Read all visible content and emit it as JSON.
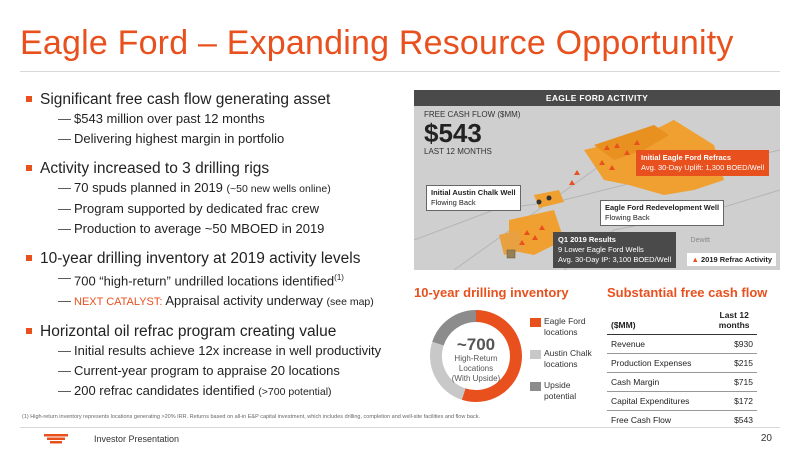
{
  "title": "Eagle Ford – Expanding Resource Opportunity",
  "bullets": [
    {
      "text": "Significant free cash flow generating asset",
      "subs": [
        "$543 million over past 12 months",
        "Delivering highest margin in portfolio"
      ]
    },
    {
      "text": "Activity increased to 3 drilling rigs",
      "subs": [
        "70 spuds planned in 2019 ",
        "Program supported by dedicated frac crew",
        "Production to average ~50 MBOED in 2019"
      ],
      "sub0_small": "(~50 new wells online)"
    },
    {
      "text": "10-year drilling inventory at 2019 activity levels",
      "subs": [
        "700 “high-return” undrilled locations identified",
        "Appraisal activity underway "
      ],
      "sub0_sup": "(1)",
      "sub1_prefix": "NEXT CATALYST:",
      "sub1_small": "(see map)"
    },
    {
      "text": "Horizontal oil refrac program creating value",
      "subs": [
        "Initial results achieve 12x increase in well productivity",
        "Current-year program to appraise 20 locations",
        "200 refrac candidates identified "
      ],
      "sub2_small": "(>700 potential)"
    }
  ],
  "map": {
    "header": "EAGLE FORD ACTIVITY",
    "fcf_label": "FREE CASH FLOW ($MM)",
    "fcf_value": "$543",
    "fcf_sub": "LAST 12 MONTHS",
    "callouts": {
      "refrac_title": "Initial Eagle Ford Refracs",
      "refrac_body": "Avg. 30-Day Uplift: 1,300 BOED/Well",
      "austin_title": "Initial Austin Chalk Well",
      "austin_body": "Flowing Back",
      "redev_title": "Eagle Ford Redevelopment Well",
      "redev_body": "Flowing Back",
      "q1_title": "Q1 2019 Results",
      "q1_body1": "9 Lower Eagle Ford Wells",
      "q1_body2": "Avg. 30-Day IP: 3,100 BOED/Well"
    },
    "county": "Dewitt",
    "legend": "2019 Refrac Activity"
  },
  "inventory": {
    "title": "10-year drilling inventory",
    "center_value": "~700",
    "center_label1": "High-Return",
    "center_label2": "Locations",
    "center_label3": "(With Upside)",
    "legend": [
      {
        "label1": "Eagle Ford",
        "label2": "locations",
        "color": "#e8501e"
      },
      {
        "label1": "Austin Chalk",
        "label2": "locations",
        "color": "#c8c8c8"
      },
      {
        "label1": "Upside",
        "label2": "potential",
        "color": "#8c8c8c"
      }
    ]
  },
  "chart_data": {
    "type": "pie",
    "categories": [
      "Eagle Ford locations",
      "Austin Chalk locations",
      "Upside potential"
    ],
    "values": [
      55,
      25,
      20
    ],
    "title": "10-year drilling inventory"
  },
  "fcf_table": {
    "title": "Substantial free cash flow",
    "header_label": "($MM)",
    "header_col1": "Last 12",
    "header_col2": "months",
    "rows": [
      {
        "label": "Revenue",
        "value": "$930"
      },
      {
        "label": "Production Expenses",
        "value": "$215"
      },
      {
        "label": "Cash Margin",
        "value": "$715"
      },
      {
        "label": "Capital Expenditures",
        "value": "$172"
      },
      {
        "label": "Free Cash Flow",
        "value": "$543"
      }
    ]
  },
  "footnote": "(1)     High-return inventory represents locations generating >20% IRR. Returns based on all-in E&P capital investment, which includes drilling, completion and well-site facilities and flow back.",
  "footer": {
    "text": "Investor Presentation",
    "page": "20"
  },
  "colors": {
    "accent": "#e8501e",
    "dark": "#4a4a4a"
  }
}
